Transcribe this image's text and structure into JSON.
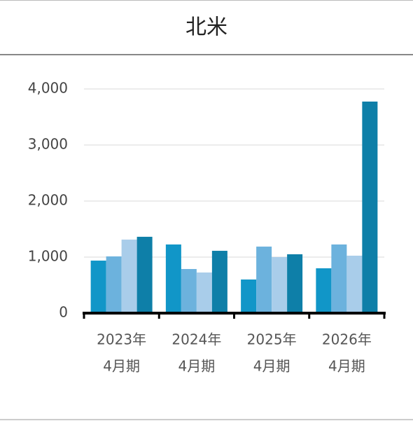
{
  "chart_data": {
    "type": "bar",
    "title": "北米",
    "categories": [
      [
        "2023年",
        "4月期"
      ],
      [
        "2024年",
        "4月期"
      ],
      [
        "2025年",
        "4月期"
      ],
      [
        "2026年",
        "4月期"
      ]
    ],
    "series": [
      {
        "color": "#1196c8",
        "values": [
          937,
          1225,
          600,
          800
        ]
      },
      {
        "color": "#6cb2dd",
        "values": [
          1012,
          787,
          1187,
          1225
        ]
      },
      {
        "color": "#a9cdea",
        "values": [
          1312,
          725,
          1000,
          1025
        ]
      },
      {
        "color": "#0e7fa8",
        "values": [
          1362,
          1112,
          1050,
          3775
        ]
      }
    ],
    "ylim": [
      0,
      4000
    ],
    "yticks": [
      0,
      {
        "value": 1000,
        "label": "1,000"
      },
      {
        "value": 2000,
        "label": "2,000"
      },
      {
        "value": 3000,
        "label": "3,000"
      },
      {
        "value": 4000,
        "label": "4,000"
      }
    ],
    "grid": true
  }
}
